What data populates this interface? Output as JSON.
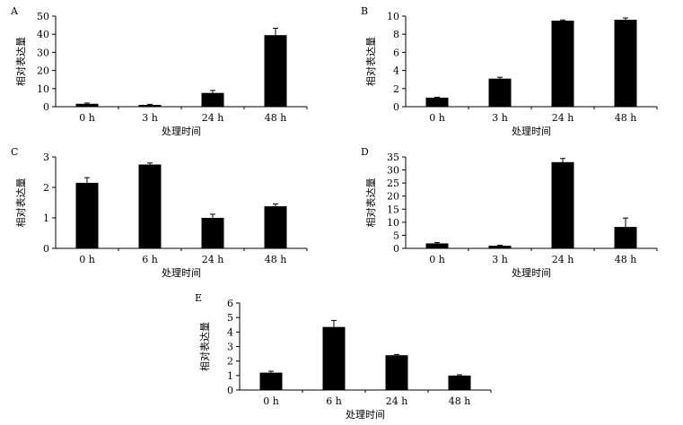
{
  "chart_data": [
    {
      "panel": "A",
      "type": "bar",
      "categories": [
        "0 h",
        "3 h",
        "24 h",
        "48 h"
      ],
      "values": [
        1.6,
        1.0,
        7.6,
        39.5
      ],
      "errors": [
        0.4,
        0.3,
        1.4,
        3.8
      ],
      "ylim": [
        0,
        50
      ],
      "yticks": [
        0,
        10,
        20,
        30,
        40,
        50
      ],
      "ylabel": "相对表达量",
      "xlabel": "处理时间",
      "color": "#000000"
    },
    {
      "panel": "B",
      "type": "bar",
      "categories": [
        "0 h",
        "3 h",
        "24 h",
        "48 h"
      ],
      "values": [
        1.0,
        3.1,
        9.5,
        9.6
      ],
      "errors": [
        0.05,
        0.15,
        0.08,
        0.2
      ],
      "ylim": [
        0,
        10
      ],
      "yticks": [
        0,
        2,
        4,
        6,
        8,
        10
      ],
      "ylabel": "相对表达量",
      "xlabel": "处理时间",
      "color": "#000000"
    },
    {
      "panel": "C",
      "type": "bar",
      "categories": [
        "0 h",
        "6 h",
        "24 h",
        "48 h"
      ],
      "values": [
        2.15,
        2.75,
        1.0,
        1.38
      ],
      "errors": [
        0.17,
        0.05,
        0.12,
        0.08
      ],
      "ylim": [
        0,
        3
      ],
      "yticks": [
        0,
        1,
        2,
        3
      ],
      "ylabel": "相对表达量",
      "xlabel": "处理时间",
      "color": "#000000"
    },
    {
      "panel": "D",
      "type": "bar",
      "categories": [
        "0 h",
        "3 h",
        "24 h",
        "48 h"
      ],
      "values": [
        1.9,
        1.0,
        33.0,
        8.2
      ],
      "errors": [
        0.3,
        0.2,
        1.4,
        3.4
      ],
      "ylim": [
        0,
        35
      ],
      "yticks": [
        0,
        5,
        10,
        15,
        20,
        25,
        30,
        35
      ],
      "ylabel": "相对表达量",
      "xlabel": "处理时间",
      "color": "#000000"
    },
    {
      "panel": "E",
      "type": "bar",
      "categories": [
        "0 h",
        "6 h",
        "24 h",
        "48 h"
      ],
      "values": [
        1.2,
        4.35,
        2.4,
        1.0
      ],
      "errors": [
        0.1,
        0.45,
        0.05,
        0.05
      ],
      "ylim": [
        0,
        6
      ],
      "yticks": [
        0,
        1,
        2,
        3,
        4,
        5,
        6
      ],
      "ylabel": "相对表达量",
      "xlabel": "处理时间",
      "color": "#000000"
    }
  ]
}
